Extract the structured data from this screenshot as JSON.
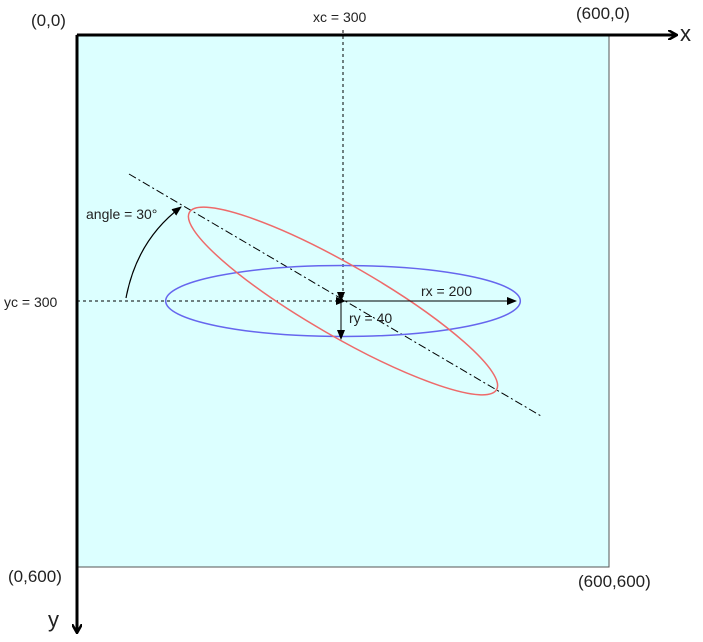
{
  "corners": {
    "top_left": "(0,0)",
    "top_right": "(600,0)",
    "bottom_left": "(0,600)",
    "bottom_right": "(600,600)"
  },
  "axes": {
    "x_label": "x",
    "y_label": "y"
  },
  "guides": {
    "xc_label": "xc = 300",
    "yc_label": "yc = 300"
  },
  "annotations": {
    "rx_label": "rx = 200",
    "ry_label": "ry = 40",
    "angle_label": "angle = 30°"
  },
  "ellipse_params": {
    "cx": 300,
    "cy": 300,
    "rx": 200,
    "ry": 40,
    "angle_deg": 30
  },
  "colors": {
    "canvas_fill": "#dcffff",
    "canvas_border": "#555555",
    "ellipse_original": "#6666ee",
    "ellipse_rotated": "#ee6a6a",
    "axis": "#000000"
  }
}
